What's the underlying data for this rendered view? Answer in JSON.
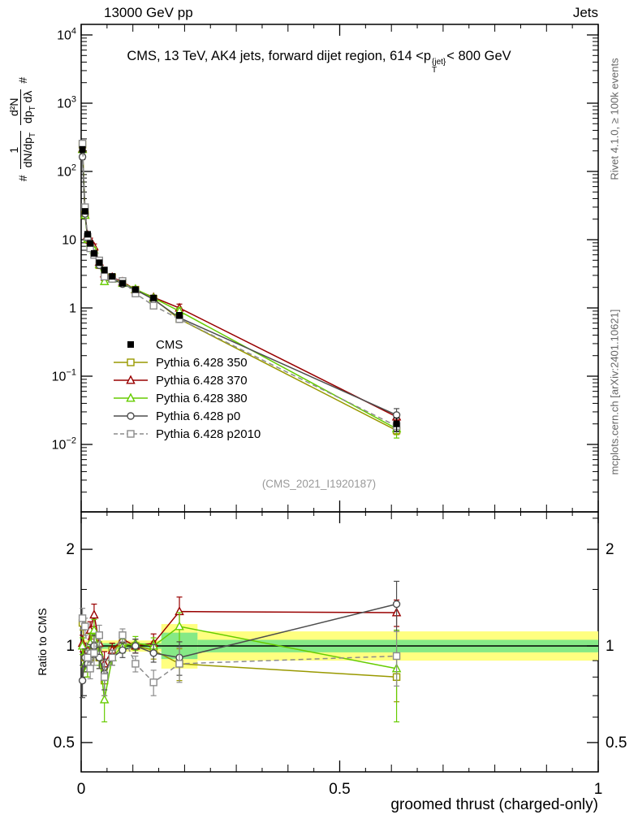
{
  "header": {
    "left": "13000 GeV pp",
    "right": "Jets"
  },
  "title": {
    "t1": "CMS, 13 TeV, AK4 jets, forward dijet region, 614 <p",
    "sup": "{jet}",
    "sub": "T",
    "t2": "< 800 GeV"
  },
  "side_notes": {
    "rivet": "Rivet 4.1.0, ≥ 100k events",
    "mcplots": "mcplots.cern.ch [arXiv:2401.10621]"
  },
  "watermark": "(CMS_2021_I1920187)",
  "axes": {
    "xlabel": "groomed thrust (charged-only)",
    "ratio_label": "Ratio to CMS",
    "ylabel": {
      "hash_bottom": "#",
      "frac1_num": "1",
      "frac1_den": "dN/dp_T",
      "frac2_num": "d²N",
      "frac2_den": "dp_T dλ",
      "hash_top": "#"
    },
    "xticks": [
      {
        "v": 0,
        "label": "0"
      },
      {
        "v": 0.5,
        "label": "0.5"
      },
      {
        "v": 1,
        "label": "1"
      }
    ],
    "ytick_exponents": [
      4,
      3,
      2,
      1,
      0,
      -1,
      -2
    ],
    "ratio_ticks": [
      {
        "v": 2,
        "label": "2"
      },
      {
        "v": 1,
        "label": "1"
      },
      {
        "v": 0.5,
        "label": "0.5"
      }
    ],
    "ratio_minor_ticks": [
      0.6,
      0.7,
      0.8,
      0.9,
      1.5,
      2.5
    ]
  },
  "chart_data": {
    "type": "line",
    "title": "CMS, 13 TeV, AK4 jets, forward dijet region, 614 < pT^{jet} < 800 GeV",
    "xlabel": "groomed thrust (charged-only)",
    "ylabel": "# 1/(dN/dp_T) d²N/(dp_T dλ)",
    "ratio_ylabel": "Ratio to CMS",
    "x_range": [
      0,
      1
    ],
    "y_scale": "log",
    "y_range": [
      0.001,
      14000
    ],
    "ratio_scale": "log",
    "ratio_range": [
      0.405,
      2.62
    ],
    "x_bin_centers": [
      0.0025,
      0.0075,
      0.0125,
      0.0175,
      0.025,
      0.035,
      0.045,
      0.06,
      0.08,
      0.105,
      0.14,
      0.19,
      0.61
    ],
    "cms_values": [
      210,
      26,
      12,
      8.8,
      6.3,
      4.6,
      3.6,
      2.9,
      2.3,
      1.85,
      1.4,
      0.78,
      0.02
    ],
    "cms_err_rel": [
      0.1,
      0.08,
      0.07,
      0.07,
      0.07,
      0.07,
      0.07,
      0.06,
      0.06,
      0.06,
      0.07,
      0.1,
      0.22
    ],
    "series": [
      {
        "name": "CMS",
        "color": "#000000",
        "marker": "square-filled",
        "line": "none",
        "ratio_to_cms": null,
        "ratio_err": null
      },
      {
        "name": "Pythia 6.428 350",
        "color": "#999900",
        "marker": "square-open",
        "line": "solid",
        "ratio_to_cms": [
          1.18,
          0.92,
          0.85,
          0.92,
          1.05,
          0.92,
          0.78,
          0.97,
          1.02,
          1.0,
          0.97,
          0.88,
          0.8
        ],
        "ratio_err": [
          0.06,
          0.05,
          0.05,
          0.06,
          0.08,
          0.07,
          0.08,
          0.05,
          0.05,
          0.05,
          0.06,
          0.1,
          0.13
        ]
      },
      {
        "name": "Pythia 6.428 370",
        "color": "#990000",
        "marker": "triangle-open",
        "line": "solid",
        "ratio_to_cms": [
          1.02,
          0.88,
          0.97,
          1.12,
          1.25,
          1.02,
          0.88,
          0.97,
          1.05,
          1.0,
          1.02,
          1.28,
          1.27
        ],
        "ratio_err": [
          0.06,
          0.05,
          0.05,
          0.07,
          0.1,
          0.08,
          0.08,
          0.05,
          0.05,
          0.05,
          0.07,
          0.14,
          0.12
        ]
      },
      {
        "name": "Pythia 6.428 380",
        "color": "#66cc00",
        "marker": "triangle-open",
        "line": "solid",
        "ratio_to_cms": [
          1.0,
          0.88,
          0.85,
          1.02,
          1.12,
          0.95,
          0.68,
          0.92,
          1.0,
          1.02,
          1.0,
          1.15,
          0.85
        ],
        "ratio_err": [
          0.06,
          0.05,
          0.05,
          0.07,
          0.09,
          0.08,
          0.1,
          0.05,
          0.05,
          0.05,
          0.06,
          0.12,
          0.27
        ]
      },
      {
        "name": "Pythia 6.428 p0",
        "color": "#4d4d4d",
        "marker": "circle-open",
        "line": "solid",
        "ratio_to_cms": [
          0.78,
          0.92,
          0.88,
          0.95,
          1.0,
          0.92,
          0.82,
          0.92,
          0.97,
          1.0,
          0.95,
          0.92,
          1.35
        ],
        "ratio_err": [
          0.09,
          0.06,
          0.05,
          0.06,
          0.08,
          0.07,
          0.09,
          0.05,
          0.05,
          0.05,
          0.06,
          0.11,
          0.24
        ]
      },
      {
        "name": "Pythia 6.428 p2010",
        "color": "#8c8c8c",
        "marker": "square-open",
        "line": "dashed",
        "ratio_to_cms": [
          1.22,
          1.15,
          0.92,
          0.85,
          0.95,
          1.08,
          0.8,
          0.92,
          1.08,
          0.88,
          0.77,
          0.88,
          0.93
        ],
        "ratio_err": [
          0.09,
          0.07,
          0.05,
          0.06,
          0.08,
          0.08,
          0.1,
          0.05,
          0.05,
          0.05,
          0.07,
          0.11,
          0.18
        ]
      }
    ],
    "band_colors": {
      "yellow": "#ffff80",
      "green": "#86e986"
    },
    "bands": [
      {
        "x0": 0,
        "x1": 0.155,
        "lo": 0.96,
        "hi": 1.04,
        "kind": "yellow"
      },
      {
        "x0": 0.155,
        "x1": 0.225,
        "lo": 0.85,
        "hi": 1.17,
        "kind": "yellow"
      },
      {
        "x0": 0.225,
        "x1": 1.0,
        "lo": 0.9,
        "hi": 1.11,
        "kind": "yellow"
      },
      {
        "x0": 0,
        "x1": 0.155,
        "lo": 0.98,
        "hi": 1.02,
        "kind": "green"
      },
      {
        "x0": 0.155,
        "x1": 0.225,
        "lo": 0.91,
        "hi": 1.1,
        "kind": "green"
      },
      {
        "x0": 0.225,
        "x1": 1.0,
        "lo": 0.955,
        "hi": 1.045,
        "kind": "green"
      }
    ]
  }
}
